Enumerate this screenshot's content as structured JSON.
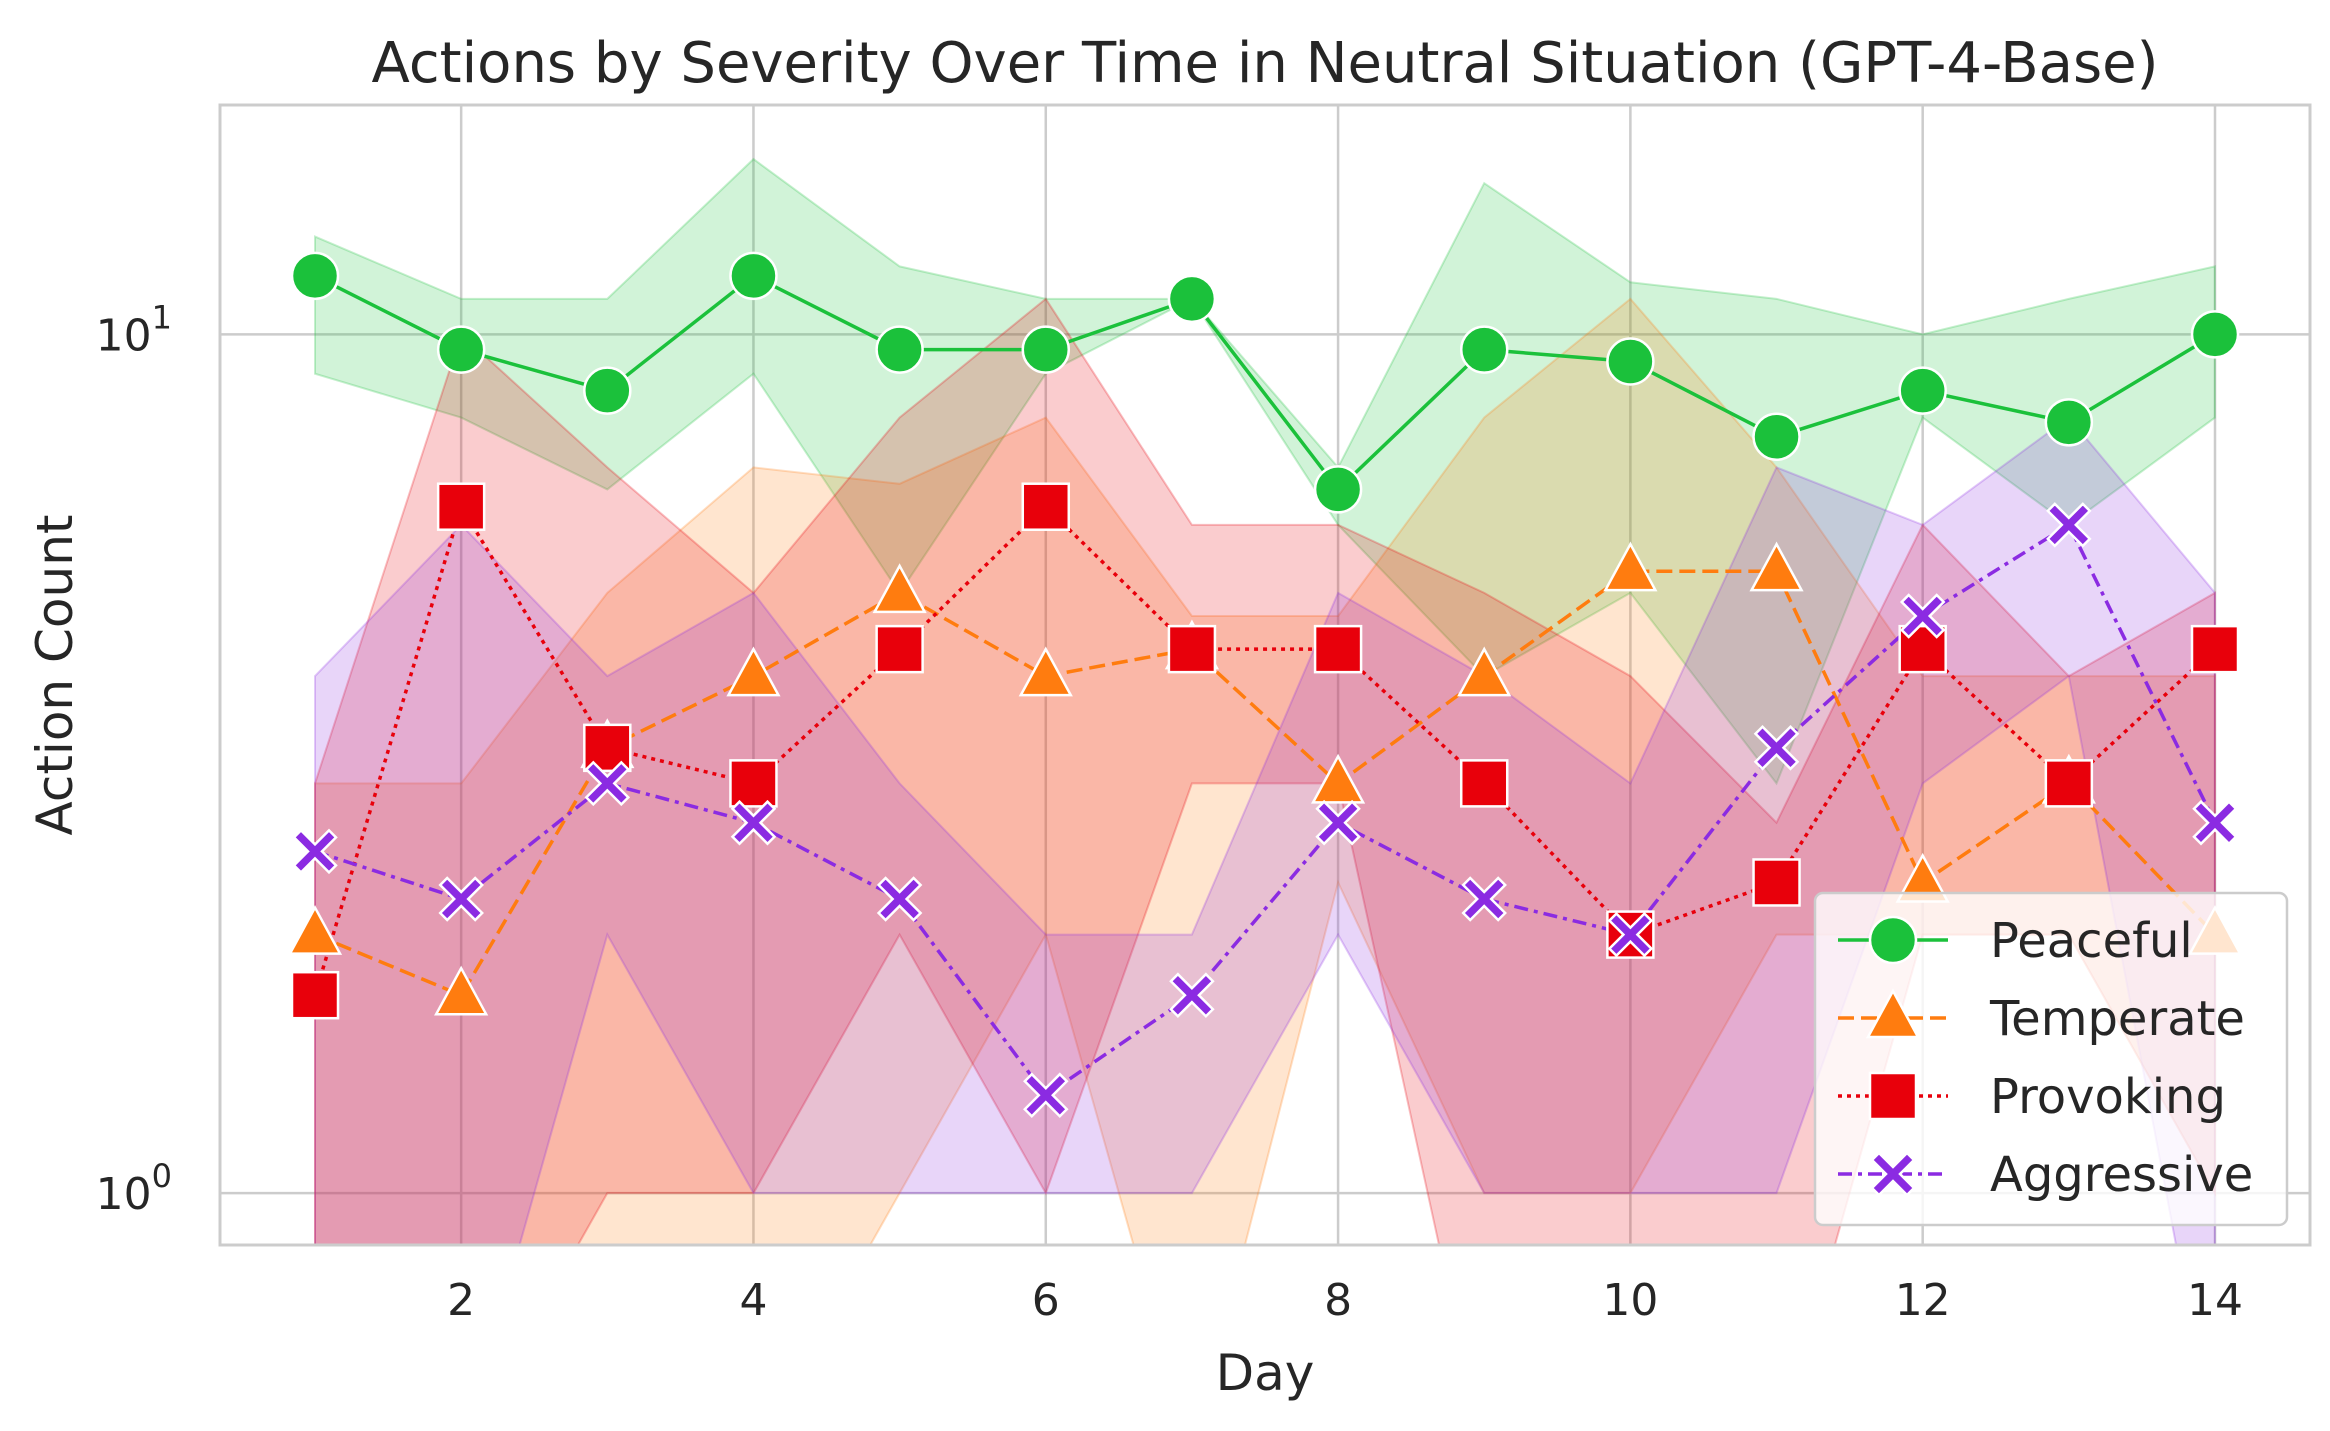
{
  "chart_data": {
    "type": "line",
    "title": "Actions by Severity Over Time in Neutral Situation (GPT-4-Base)",
    "xlabel": "Day",
    "ylabel": "Action Count",
    "yscale": "log",
    "xlim": [
      0.35,
      14.65
    ],
    "ylim": [
      0.87,
      18.5
    ],
    "x_ticks": [
      2,
      4,
      6,
      8,
      10,
      12,
      14
    ],
    "y_ticks": [
      {
        "value": 1,
        "base": "10",
        "exp": "0"
      },
      {
        "value": 10,
        "base": "10",
        "exp": "1"
      }
    ],
    "grid": true,
    "legend_position": "lower right",
    "x": [
      1,
      2,
      3,
      4,
      5,
      6,
      7,
      8,
      9,
      10,
      11,
      12,
      13,
      14
    ],
    "series": [
      {
        "name": "Peaceful",
        "color": "#1bc13b",
        "linestyle": "solid",
        "marker": "circle",
        "values": [
          11.7,
          9.6,
          8.6,
          11.7,
          9.6,
          9.6,
          11.0,
          6.6,
          9.6,
          9.3,
          7.6,
          8.6,
          7.9,
          10.0
        ],
        "ci_lower": [
          9.0,
          8.0,
          6.6,
          9.0,
          5.0,
          9.0,
          11.0,
          6.0,
          4.0,
          5.0,
          3.0,
          8.0,
          6.0,
          8.0
        ],
        "ci_upper": [
          13.0,
          11.0,
          11.0,
          16.0,
          12.0,
          11.0,
          11.0,
          7.0,
          15.0,
          11.5,
          11.0,
          10.0,
          11.0,
          12.0
        ]
      },
      {
        "name": "Temperate",
        "color": "#ff7c0f",
        "linestyle": "dashed",
        "marker": "triangle",
        "values": [
          2.0,
          1.7,
          3.3,
          4.0,
          5.0,
          4.0,
          4.3,
          3.0,
          4.0,
          5.3,
          5.3,
          2.3,
          3.0,
          2.0
        ],
        "ci_lower": [
          0.5,
          0.5,
          0.5,
          0.5,
          1.0,
          2.0,
          0.5,
          2.3,
          1.0,
          1.0,
          2.0,
          2.0,
          2.0,
          1.0
        ],
        "ci_upper": [
          3.0,
          3.0,
          5.0,
          7.0,
          6.7,
          8.0,
          4.7,
          4.7,
          8.0,
          11.0,
          7.0,
          4.0,
          4.0,
          4.0
        ]
      },
      {
        "name": "Provoking",
        "color": "#e8000b",
        "linestyle": "dotted",
        "marker": "square",
        "values": [
          1.7,
          6.3,
          3.3,
          3.0,
          4.3,
          6.3,
          4.3,
          4.3,
          3.0,
          2.0,
          2.3,
          4.3,
          3.0,
          4.3
        ],
        "ci_lower": [
          0.5,
          0.5,
          1.0,
          1.0,
          2.0,
          1.0,
          3.0,
          3.0,
          0.5,
          0.5,
          0.5,
          2.0,
          2.0,
          1.0
        ],
        "ci_upper": [
          3.0,
          10.0,
          7.0,
          5.0,
          8.0,
          11.0,
          6.0,
          6.0,
          5.0,
          4.0,
          2.7,
          6.0,
          4.0,
          5.0
        ]
      },
      {
        "name": "Aggressive",
        "color": "#8b2be2",
        "linestyle": "dashdot",
        "marker": "x",
        "values": [
          2.5,
          2.2,
          3.0,
          2.7,
          2.2,
          1.3,
          1.7,
          2.7,
          2.2,
          2.0,
          3.3,
          4.7,
          6.0,
          2.7
        ],
        "ci_lower": [
          0.5,
          0.5,
          2.0,
          1.0,
          1.0,
          1.0,
          1.0,
          2.0,
          1.0,
          1.0,
          1.0,
          3.0,
          4.0,
          0.5
        ],
        "ci_upper": [
          4.0,
          6.0,
          4.0,
          5.0,
          3.0,
          2.0,
          2.0,
          5.0,
          4.0,
          3.0,
          7.0,
          6.0,
          8.0,
          5.0
        ]
      }
    ]
  }
}
